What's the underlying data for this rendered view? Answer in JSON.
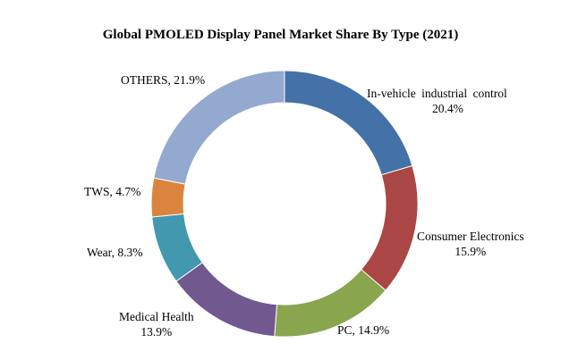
{
  "chart_data": {
    "type": "pie",
    "subtype": "donut",
    "title": "Global PMOLED Display Panel Market Share By Type (2021)",
    "unit": "%",
    "slices": [
      {
        "label": "In-vehicle industrial control",
        "value": 20.4,
        "value_label": "20.4%",
        "color": "#4472A8"
      },
      {
        "label": "Consumer Electronics",
        "value": 15.9,
        "value_label": "15.9%",
        "color": "#AA4643"
      },
      {
        "label": "PC",
        "value": 14.9,
        "value_label": "14.9%",
        "color": "#89A54E"
      },
      {
        "label": "Medical Health",
        "value": 13.9,
        "value_label": "13.9%",
        "color": "#71588F"
      },
      {
        "label": "Wear",
        "value": 8.3,
        "value_label": "8.3%",
        "color": "#4198AF"
      },
      {
        "label": "TWS",
        "value": 4.7,
        "value_label": "4.7%",
        "color": "#DB843D"
      },
      {
        "label": "OTHERS",
        "value": 21.9,
        "value_label": "21.9%",
        "color": "#93A9CF"
      }
    ],
    "legend": "none",
    "start_angle": "top, clockwise"
  }
}
